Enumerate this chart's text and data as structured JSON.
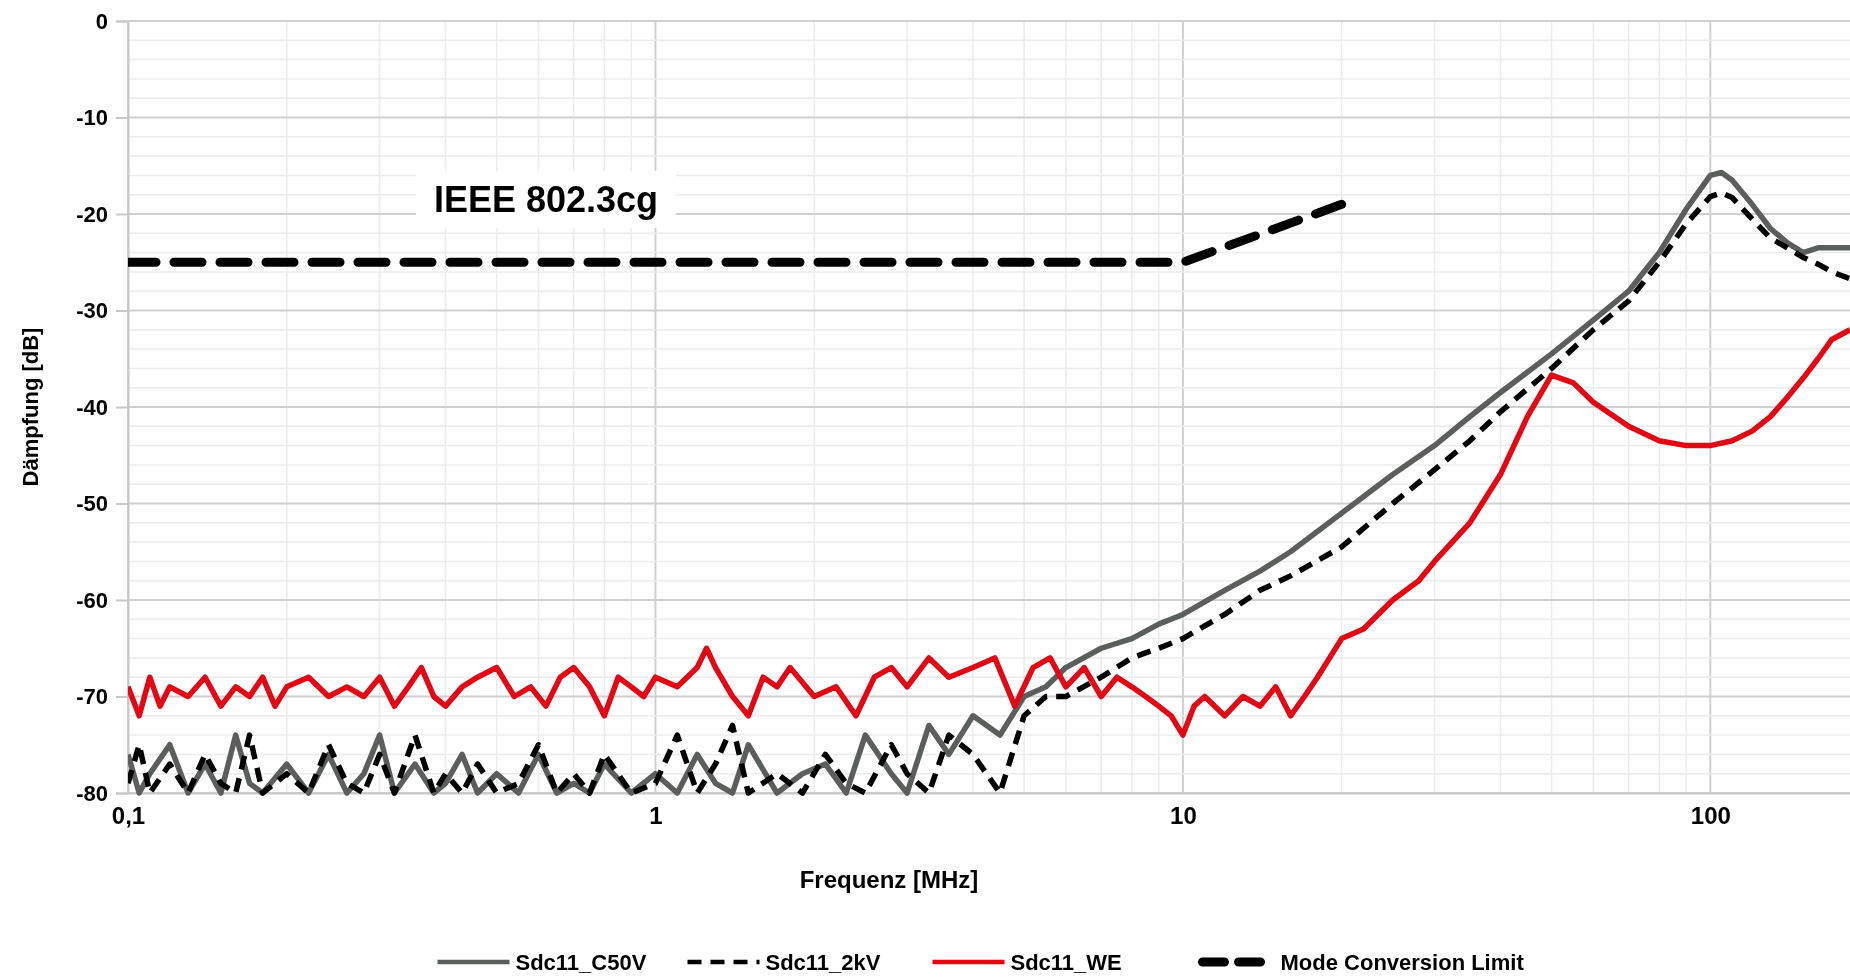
{
  "chart_data": {
    "type": "line",
    "xlabel": "Frequenz [MHz]",
    "ylabel": "Dämpfung [dB]",
    "log": "x",
    "xlim": [
      0.1,
      184
    ],
    "xticks": [
      {
        "value": 0.1,
        "label": "0,1"
      },
      1,
      10,
      100
    ],
    "ylim": [
      -80,
      0
    ],
    "yticks": [
      -80,
      -70,
      -60,
      -50,
      -40,
      -30,
      -20,
      -10,
      0
    ],
    "grid": true,
    "legend": "bottom",
    "marker": "none",
    "annotations": [
      "IEEE 802.3cg"
    ],
    "series": [
      {
        "name": "Sdc11_C50V",
        "color": "#5a5f5c",
        "line_style": "solid",
        "x": [
          0.1,
          0.105,
          0.11,
          0.12,
          0.13,
          0.14,
          0.15,
          0.16,
          0.17,
          0.18,
          0.2,
          0.22,
          0.24,
          0.26,
          0.28,
          0.3,
          0.32,
          0.35,
          0.38,
          0.4,
          0.43,
          0.46,
          0.5,
          0.55,
          0.6,
          0.65,
          0.7,
          0.75,
          0.8,
          0.9,
          1,
          1.1,
          1.2,
          1.3,
          1.4,
          1.5,
          1.7,
          1.9,
          2.1,
          2.3,
          2.5,
          2.8,
          3,
          3.3,
          3.6,
          4,
          4.5,
          5,
          5.5,
          6,
          7,
          8,
          9,
          10,
          12,
          14,
          16,
          20,
          25,
          30,
          35,
          40,
          50,
          60,
          70,
          80,
          90,
          100,
          105,
          110,
          120,
          130,
          140,
          150,
          160,
          170,
          184
        ],
        "values": [
          -76,
          -80,
          -78,
          -75,
          -80,
          -77,
          -80,
          -74,
          -79,
          -80,
          -77,
          -80,
          -76,
          -80,
          -78,
          -74,
          -80,
          -77,
          -80,
          -79,
          -76,
          -80,
          -78,
          -80,
          -76,
          -80,
          -79,
          -80,
          -77,
          -80,
          -78,
          -80,
          -76,
          -79,
          -80,
          -75,
          -80,
          -78,
          -77,
          -80,
          -74,
          -78,
          -80,
          -73,
          -76,
          -72,
          -74,
          -70,
          -69,
          -67,
          -65,
          -64,
          -62.5,
          -61.5,
          -59,
          -57,
          -55,
          -51,
          -47,
          -44,
          -41,
          -38.5,
          -34.5,
          -31,
          -28,
          -24,
          -19.5,
          -16,
          -15.7,
          -16.5,
          -19,
          -21.5,
          -23,
          -24,
          -23.5,
          -23.5,
          -23.5
        ]
      },
      {
        "name": "Sdc11_2kV",
        "color": "#000000",
        "line_style": "dashed",
        "x": [
          0.1,
          0.105,
          0.11,
          0.12,
          0.13,
          0.14,
          0.15,
          0.16,
          0.17,
          0.18,
          0.2,
          0.22,
          0.24,
          0.26,
          0.28,
          0.3,
          0.32,
          0.35,
          0.38,
          0.4,
          0.43,
          0.46,
          0.5,
          0.55,
          0.6,
          0.65,
          0.7,
          0.75,
          0.8,
          0.9,
          1,
          1.1,
          1.2,
          1.3,
          1.4,
          1.5,
          1.7,
          1.9,
          2.1,
          2.3,
          2.5,
          2.8,
          3,
          3.3,
          3.6,
          4,
          4.5,
          5,
          5.5,
          6,
          7,
          8,
          9,
          10,
          12,
          14,
          16,
          20,
          25,
          30,
          35,
          40,
          50,
          60,
          70,
          80,
          90,
          100,
          105,
          110,
          120,
          130,
          140,
          150,
          160,
          170,
          184
        ],
        "values": [
          -79,
          -75,
          -80,
          -77,
          -80,
          -76,
          -79,
          -80,
          -74,
          -80,
          -78,
          -80,
          -75,
          -79,
          -80,
          -76,
          -80,
          -74,
          -80,
          -78,
          -80,
          -77,
          -80,
          -79,
          -75,
          -80,
          -78,
          -80,
          -76,
          -80,
          -79,
          -74,
          -80,
          -77,
          -73,
          -80,
          -78,
          -80,
          -76,
          -79,
          -80,
          -75,
          -78,
          -80,
          -74,
          -76,
          -80,
          -72,
          -70,
          -70,
          -68,
          -66,
          -65,
          -64,
          -61.5,
          -59,
          -57.5,
          -54.5,
          -50,
          -46.5,
          -43.5,
          -40.5,
          -36,
          -32,
          -29,
          -25,
          -21,
          -18.2,
          -17.8,
          -18.3,
          -20.5,
          -22.5,
          -23.5,
          -24.5,
          -25.2,
          -26,
          -26.7
        ]
      },
      {
        "name": "Sdc11_WE",
        "color": "#e30613",
        "line_style": "solid",
        "x": [
          0.1,
          0.105,
          0.11,
          0.115,
          0.12,
          0.13,
          0.14,
          0.15,
          0.16,
          0.17,
          0.18,
          0.19,
          0.2,
          0.22,
          0.24,
          0.26,
          0.28,
          0.3,
          0.32,
          0.34,
          0.36,
          0.38,
          0.4,
          0.43,
          0.46,
          0.5,
          0.54,
          0.58,
          0.62,
          0.66,
          0.7,
          0.75,
          0.8,
          0.85,
          0.9,
          0.95,
          1,
          1.1,
          1.2,
          1.25,
          1.3,
          1.4,
          1.5,
          1.6,
          1.7,
          1.8,
          2,
          2.2,
          2.4,
          2.6,
          2.8,
          3,
          3.3,
          3.6,
          4,
          4.4,
          4.8,
          5.2,
          5.6,
          6,
          6.5,
          7,
          7.5,
          8,
          8.5,
          9,
          9.5,
          10,
          10.5,
          11,
          12,
          13,
          14,
          15,
          16,
          17,
          18,
          20,
          22,
          25,
          28,
          30,
          35,
          40,
          45,
          50,
          55,
          60,
          70,
          80,
          90,
          100,
          110,
          120,
          130,
          140,
          150,
          160,
          170,
          184
        ],
        "values": [
          -69,
          -72,
          -68,
          -71,
          -69,
          -70,
          -68,
          -71,
          -69,
          -70,
          -68,
          -71,
          -69,
          -68,
          -70,
          -69,
          -70,
          -68,
          -71,
          -69,
          -67,
          -70,
          -71,
          -69,
          -68,
          -67,
          -70,
          -69,
          -71,
          -68,
          -67,
          -69,
          -72,
          -68,
          -69,
          -70,
          -68,
          -69,
          -67,
          -65,
          -67,
          -70,
          -72,
          -68,
          -69,
          -67,
          -70,
          -69,
          -72,
          -68,
          -67,
          -69,
          -66,
          -68,
          -67,
          -66,
          -71,
          -67,
          -66,
          -69,
          -67,
          -70,
          -68,
          -69,
          -70,
          -71,
          -72,
          -74,
          -71,
          -70,
          -72,
          -70,
          -71,
          -69,
          -72,
          -70,
          -68,
          -64,
          -63,
          -60,
          -58,
          -56,
          -52,
          -47,
          -41,
          -36.7,
          -37.5,
          -39.5,
          -42,
          -43.5,
          -44,
          -44,
          -43.5,
          -42.5,
          -41,
          -39,
          -37,
          -35,
          -33,
          -32
        ]
      },
      {
        "name": "Mode Conversion Limit",
        "color": "#000000",
        "line_style": "dashed",
        "x": [
          0.1,
          10,
          15,
          20
        ],
        "values": [
          -25,
          -25,
          -21.5,
          -19
        ]
      }
    ]
  }
}
